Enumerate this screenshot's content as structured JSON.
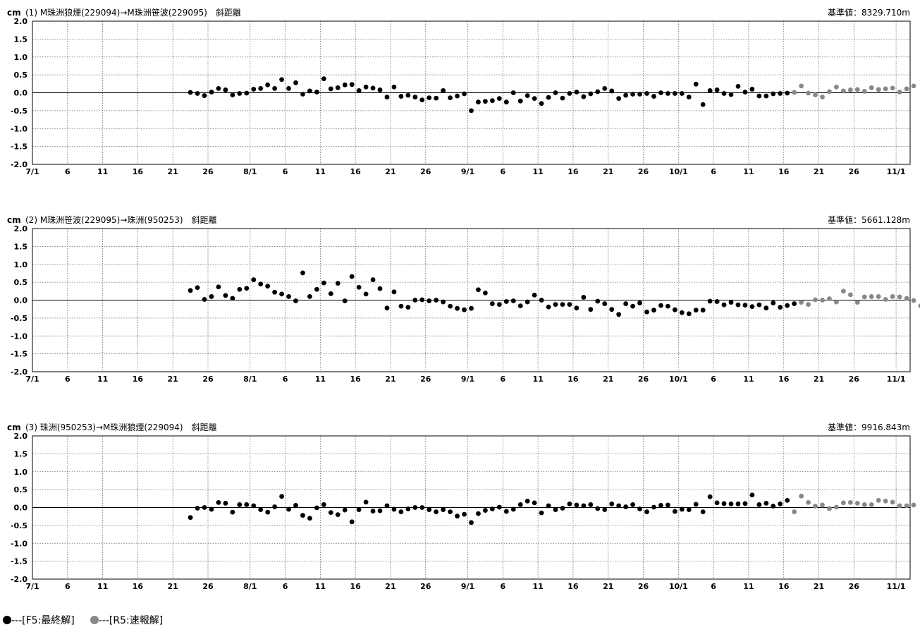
{
  "legend": {
    "final_label": "---[F5:最終解]",
    "final_color": "#000000",
    "rapid_label": "---[R5:速報解]",
    "rapid_color": "#888888"
  },
  "chart_data": [
    {
      "type": "scatter",
      "unit": "cm",
      "title": "(1) M珠洲狼煙(229094)→M珠洲笹波(229095)　斜距離",
      "baseline": "基準値：8329.710m",
      "x_start": "7/1",
      "x_end": "11/3",
      "xticks": [
        {
          "day": 0,
          "label": "7/1"
        },
        {
          "day": 5,
          "label": "6"
        },
        {
          "day": 10,
          "label": "11"
        },
        {
          "day": 15,
          "label": "16"
        },
        {
          "day": 20,
          "label": "21"
        },
        {
          "day": 25,
          "label": "26"
        },
        {
          "day": 31,
          "label": "8/1"
        },
        {
          "day": 36,
          "label": "6"
        },
        {
          "day": 41,
          "label": "11"
        },
        {
          "day": 46,
          "label": "16"
        },
        {
          "day": 51,
          "label": "21"
        },
        {
          "day": 56,
          "label": "26"
        },
        {
          "day": 62,
          "label": "9/1"
        },
        {
          "day": 67,
          "label": "6"
        },
        {
          "day": 72,
          "label": "11"
        },
        {
          "day": 77,
          "label": "16"
        },
        {
          "day": 82,
          "label": "21"
        },
        {
          "day": 87,
          "label": "26"
        },
        {
          "day": 92,
          "label": "10/1"
        },
        {
          "day": 97,
          "label": "6"
        },
        {
          "day": 102,
          "label": "11"
        },
        {
          "day": 107,
          "label": "16"
        },
        {
          "day": 112,
          "label": "21"
        },
        {
          "day": 117,
          "label": "26"
        },
        {
          "day": 123,
          "label": "11/1"
        }
      ],
      "yticks": [
        "2.0",
        "1.5",
        "1.0",
        "0.5",
        "0.0",
        "-0.5",
        "-1.0",
        "-1.5",
        "-2.0"
      ],
      "ylim": [
        -2.0,
        2.0
      ],
      "first_day_index": 22,
      "final_values": [
        0.01,
        -0.02,
        -0.08,
        0.02,
        0.12,
        0.08,
        -0.06,
        -0.02,
        -0.01,
        0.1,
        0.12,
        0.22,
        0.12,
        0.37,
        0.12,
        0.28,
        -0.04,
        0.05,
        0.02,
        0.39,
        0.11,
        0.14,
        0.22,
        0.23,
        0.06,
        0.16,
        0.13,
        0.08,
        -0.12,
        0.16,
        -0.1,
        -0.07,
        -0.12,
        -0.2,
        -0.14,
        -0.15,
        0.06,
        -0.14,
        -0.09,
        -0.03,
        -0.5,
        -0.26,
        -0.24,
        -0.22,
        -0.16,
        -0.26,
        0,
        -0.23,
        -0.08,
        -0.16,
        -0.3,
        -0.13,
        0,
        -0.15,
        -0.02,
        0.02,
        -0.11,
        -0.03,
        0.03,
        0.12,
        0.05,
        -0.16,
        -0.07,
        -0.04,
        -0.04,
        -0.02,
        -0.1,
        0,
        -0.02,
        -0.02,
        -0.02,
        -0.12,
        0.24,
        -0.33,
        0.06,
        0.08,
        -0.02,
        -0.05,
        0.18,
        0.02,
        0.1,
        -0.09,
        -0.09,
        -0.03,
        -0.02,
        -0.01
      ],
      "rapid_values": [
        0.01,
        0.19,
        -0.01,
        -0.06,
        -0.12,
        0.03,
        0.16,
        0.05,
        0.08,
        0.09,
        0.04,
        0.14,
        0.09,
        0.11,
        0.13,
        0.02,
        0.11,
        0.19
      ]
    },
    {
      "type": "scatter",
      "unit": "cm",
      "title": "(2) M珠洲笹波(229095)→珠洲(950253)　斜距離",
      "baseline": "基準値：5661.128m",
      "x_start": "7/1",
      "x_end": "11/3",
      "xticks": [
        {
          "day": 0,
          "label": "7/1"
        },
        {
          "day": 5,
          "label": "6"
        },
        {
          "day": 10,
          "label": "11"
        },
        {
          "day": 15,
          "label": "16"
        },
        {
          "day": 20,
          "label": "21"
        },
        {
          "day": 25,
          "label": "26"
        },
        {
          "day": 31,
          "label": "8/1"
        },
        {
          "day": 36,
          "label": "6"
        },
        {
          "day": 41,
          "label": "11"
        },
        {
          "day": 46,
          "label": "16"
        },
        {
          "day": 51,
          "label": "21"
        },
        {
          "day": 56,
          "label": "26"
        },
        {
          "day": 62,
          "label": "9/1"
        },
        {
          "day": 67,
          "label": "6"
        },
        {
          "day": 72,
          "label": "11"
        },
        {
          "day": 77,
          "label": "16"
        },
        {
          "day": 82,
          "label": "21"
        },
        {
          "day": 87,
          "label": "26"
        },
        {
          "day": 92,
          "label": "10/1"
        },
        {
          "day": 97,
          "label": "6"
        },
        {
          "day": 102,
          "label": "11"
        },
        {
          "day": 107,
          "label": "16"
        },
        {
          "day": 112,
          "label": "21"
        },
        {
          "day": 117,
          "label": "26"
        },
        {
          "day": 123,
          "label": "11/1"
        }
      ],
      "yticks": [
        "2.0",
        "1.5",
        "1.0",
        "0.5",
        "0.0",
        "-0.5",
        "-1.0",
        "-1.5",
        "-2.0"
      ],
      "ylim": [
        -2.0,
        2.0
      ],
      "first_day_index": 22,
      "final_values": [
        0.27,
        0.35,
        0.02,
        0.1,
        0.37,
        0.13,
        0.05,
        0.3,
        0.33,
        0.57,
        0.45,
        0.39,
        0.22,
        0.17,
        0.1,
        -0.02,
        0.76,
        0.1,
        0.3,
        0.48,
        0.18,
        0.47,
        -0.02,
        0.66,
        0.36,
        0.17,
        0.57,
        0.32,
        -0.22,
        0.23,
        -0.17,
        -0.2,
        0,
        0.01,
        -0.02,
        0,
        -0.05,
        -0.17,
        -0.23,
        -0.27,
        -0.23,
        0.29,
        0.2,
        -0.1,
        -0.12,
        -0.04,
        -0.02,
        -0.16,
        -0.05,
        0.14,
        0,
        -0.19,
        -0.12,
        -0.12,
        -0.12,
        -0.22,
        0.08,
        -0.26,
        -0.03,
        -0.1,
        -0.26,
        -0.4,
        -0.1,
        -0.17,
        -0.08,
        -0.33,
        -0.28,
        -0.15,
        -0.17,
        -0.27,
        -0.35,
        -0.38,
        -0.28,
        -0.28,
        -0.03,
        -0.04,
        -0.13,
        -0.06,
        -0.13,
        -0.14,
        -0.18,
        -0.13,
        -0.22,
        -0.08,
        -0.2,
        -0.15,
        -0.1
      ],
      "rapid_values": [
        -0.06,
        -0.12,
        0.01,
        0,
        0.04,
        -0.05,
        0.25,
        0.15,
        -0.06,
        0.09,
        0.1,
        0.1,
        0.02,
        0.1,
        0.09,
        0.05,
        -0.01,
        -0.16
      ]
    },
    {
      "type": "scatter",
      "unit": "cm",
      "title": "(3) 珠洲(950253)→M珠洲狼煙(229094)　斜距離",
      "baseline": "基準値：9916.843m",
      "x_start": "7/1",
      "x_end": "11/3",
      "xticks": [
        {
          "day": 0,
          "label": "7/1"
        },
        {
          "day": 5,
          "label": "6"
        },
        {
          "day": 10,
          "label": "11"
        },
        {
          "day": 15,
          "label": "16"
        },
        {
          "day": 20,
          "label": "21"
        },
        {
          "day": 25,
          "label": "26"
        },
        {
          "day": 31,
          "label": "8/1"
        },
        {
          "day": 36,
          "label": "6"
        },
        {
          "day": 41,
          "label": "11"
        },
        {
          "day": 46,
          "label": "16"
        },
        {
          "day": 51,
          "label": "21"
        },
        {
          "day": 56,
          "label": "26"
        },
        {
          "day": 62,
          "label": "9/1"
        },
        {
          "day": 67,
          "label": "6"
        },
        {
          "day": 72,
          "label": "11"
        },
        {
          "day": 77,
          "label": "16"
        },
        {
          "day": 82,
          "label": "21"
        },
        {
          "day": 87,
          "label": "26"
        },
        {
          "day": 92,
          "label": "10/1"
        },
        {
          "day": 97,
          "label": "6"
        },
        {
          "day": 102,
          "label": "11"
        },
        {
          "day": 107,
          "label": "16"
        },
        {
          "day": 112,
          "label": "21"
        },
        {
          "day": 117,
          "label": "26"
        },
        {
          "day": 123,
          "label": "11/1"
        }
      ],
      "yticks": [
        "2.0",
        "1.5",
        "1.0",
        "0.5",
        "0.0",
        "-0.5",
        "-1.0",
        "-1.5",
        "-2.0"
      ],
      "ylim": [
        -2.0,
        2.0
      ],
      "first_day_index": 22,
      "final_values": [
        -0.28,
        -0.02,
        0,
        -0.05,
        0.14,
        0.12,
        -0.13,
        0.08,
        0.08,
        0.05,
        -0.06,
        -0.13,
        0.02,
        0.31,
        -0.05,
        0.06,
        -0.22,
        -0.3,
        -0.01,
        0.08,
        -0.14,
        -0.2,
        -0.07,
        -0.4,
        -0.06,
        0.15,
        -0.1,
        -0.09,
        0.05,
        -0.05,
        -0.12,
        -0.04,
        0,
        0,
        -0.06,
        -0.12,
        -0.06,
        -0.12,
        -0.24,
        -0.19,
        -0.42,
        -0.17,
        -0.08,
        -0.04,
        0.01,
        -0.11,
        -0.05,
        0.08,
        0.18,
        0.13,
        -0.15,
        0.05,
        -0.06,
        -0.02,
        0.1,
        0.07,
        0.05,
        0.08,
        -0.03,
        -0.06,
        0.1,
        0.05,
        0.02,
        0.08,
        -0.04,
        -0.12,
        0.01,
        0.06,
        0.07,
        -0.11,
        -0.05,
        -0.06,
        0.09,
        -0.12,
        0.3,
        0.13,
        0.11,
        0.1,
        0.1,
        0.11,
        0.35,
        0.08,
        0.12,
        0.04,
        0.1,
        0.2
      ],
      "rapid_values": [
        -0.12,
        0.32,
        0.14,
        0.04,
        0.07,
        -0.03,
        0.01,
        0.13,
        0.14,
        0.12,
        0.08,
        0.08,
        0.2,
        0.18,
        0.15,
        0.05,
        0.05,
        0.07
      ]
    }
  ]
}
